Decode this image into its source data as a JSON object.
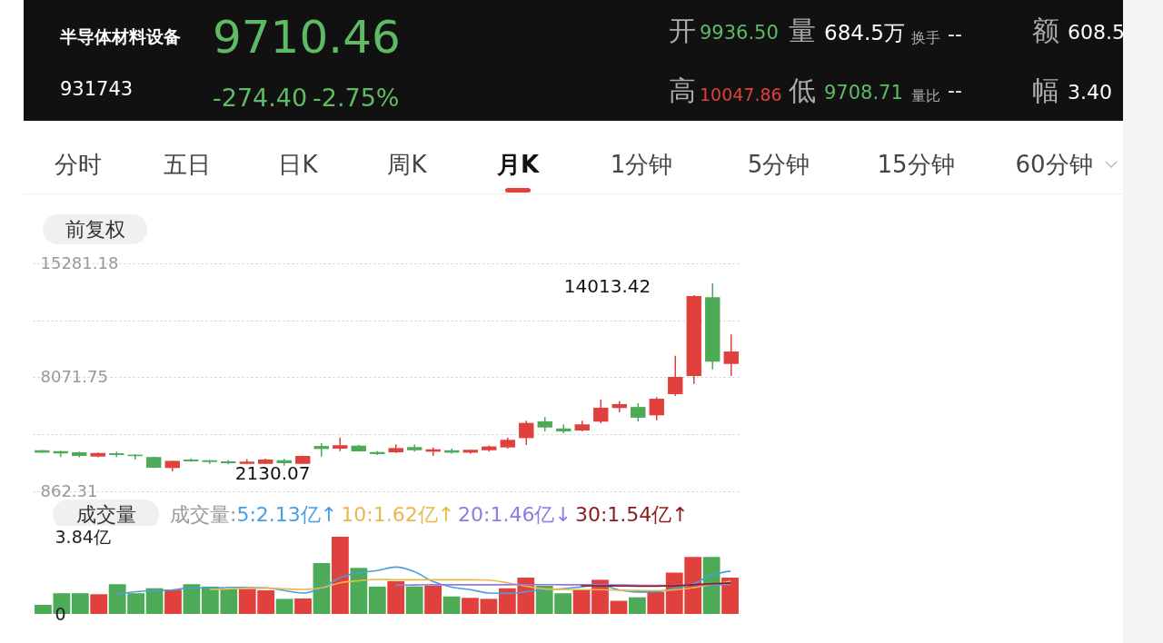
{
  "chart_data": [
    {
      "type": "other",
      "title": "半导体材料设备",
      "annotations": [
        "9710.46",
        "931743",
        "-274.40",
        "-2.75%",
        "开",
        "9936.50",
        "量",
        "684.5万",
        "换手",
        "--",
        "额",
        "608.5",
        "高",
        "10047.86",
        "低",
        "9708.71",
        "量比",
        "--",
        "幅",
        "3.40"
      ]
    },
    {
      "type": "other",
      "annotations": [
        "分时",
        "五日",
        "日K",
        "周K",
        "月K",
        "1分钟",
        "5分钟",
        "15分钟",
        "60分钟"
      ]
    },
    {
      "type": "candlestick",
      "title": "前复权",
      "categories": [
        null,
        null,
        null,
        null,
        null,
        null,
        null,
        null,
        null,
        null,
        null,
        null,
        null,
        null,
        null,
        null,
        null,
        null,
        null,
        null,
        null,
        null,
        null,
        null,
        null,
        null,
        null,
        null,
        null,
        null,
        null,
        null,
        null,
        null,
        null,
        null,
        null,
        null
      ],
      "ohlc": [
        [
          3460,
          3480,
          3300,
          3310
        ],
        [
          3410,
          3420,
          3030,
          3260
        ],
        [
          3330,
          3370,
          3010,
          3100
        ],
        [
          3060,
          3320,
          3020,
          3290
        ],
        [
          3270,
          3370,
          3010,
          3160
        ],
        [
          3180,
          3220,
          2870,
          3090
        ],
        [
          3030,
          3050,
          2340,
          2350
        ],
        [
          2340,
          2800,
          2130.07,
          2790
        ],
        [
          2870,
          2950,
          2740,
          2760
        ],
        [
          2830,
          2830,
          2600,
          2720
        ],
        [
          2760,
          2840,
          2570,
          2640
        ],
        [
          2600,
          2900,
          2600,
          2740
        ],
        [
          2600,
          2930,
          2580,
          2870
        ],
        [
          2830,
          2920,
          2480,
          2640
        ],
        [
          2600,
          3120,
          2600,
          3100
        ],
        [
          3730,
          3910,
          3060,
          3540
        ],
        [
          3560,
          4270,
          3410,
          3780
        ],
        [
          3750,
          3810,
          3370,
          3390
        ],
        [
          3350,
          3400,
          3160,
          3220
        ],
        [
          3330,
          3830,
          3290,
          3600
        ],
        [
          3660,
          3830,
          3370,
          3460
        ],
        [
          3370,
          3640,
          3100,
          3520
        ],
        [
          3460,
          3560,
          3240,
          3310
        ],
        [
          3310,
          3510,
          3250,
          3490
        ],
        [
          3460,
          3770,
          3370,
          3700
        ],
        [
          3640,
          4270,
          3560,
          4120
        ],
        [
          4230,
          5330,
          3790,
          5190
        ],
        [
          5290,
          5560,
          4650,
          4900
        ],
        [
          4840,
          5100,
          4520,
          4650
        ],
        [
          4710,
          5330,
          4650,
          5100
        ],
        [
          5270,
          6670,
          5170,
          6150
        ],
        [
          6130,
          6570,
          5860,
          6380
        ],
        [
          6200,
          6430,
          5290,
          5520
        ],
        [
          5670,
          6820,
          5360,
          6720
        ],
        [
          7010,
          9440,
          6890,
          8100
        ],
        [
          8160,
          13270,
          7660,
          13210
        ],
        [
          13140,
          14013.42,
          8580,
          9060
        ],
        [
          8920,
          10780,
          8160,
          9710.46
        ]
      ],
      "colors": [
        "#4daa57",
        "#4daa57",
        "#4daa57",
        "#e0413c",
        "#4daa57",
        "#4daa57",
        "#4daa57",
        "#e0413c",
        "#4daa57",
        "#4daa57",
        "#4daa57",
        "#e0413c",
        "#e0413c",
        "#4daa57",
        "#e0413c",
        "#4daa57",
        "#e0413c",
        "#4daa57",
        "#4daa57",
        "#e0413c",
        "#4daa57",
        "#e0413c",
        "#4daa57",
        "#e0413c",
        "#e0413c",
        "#e0413c",
        "#e0413c",
        "#4daa57",
        "#4daa57",
        "#e0413c",
        "#e0413c",
        "#e0413c",
        "#4daa57",
        "#e0413c",
        "#e0413c",
        "#e0413c",
        "#4daa57",
        "#e0413c"
      ],
      "ylim": [
        862.31,
        15281.18
      ],
      "yticks": [
        862.31,
        {
          "value": 4467.03,
          "label": null
        },
        8071.75,
        {
          "value": 11676.46,
          "label": null
        },
        15281.18
      ],
      "grid": "y",
      "tick_labels": "y",
      "annotations": [
        "14013.42",
        "2130.07"
      ]
    },
    {
      "type": "bar",
      "title": "成交量",
      "legend_title": "成交量:",
      "legend": "top",
      "categories": [
        null,
        null,
        null,
        null,
        null,
        null,
        null,
        null,
        null,
        null,
        null,
        null,
        null,
        null,
        null,
        null,
        null,
        null,
        null,
        null,
        null,
        null,
        null,
        null,
        null,
        null,
        null,
        null,
        null,
        null,
        null,
        null,
        null,
        null,
        null,
        null,
        null,
        null
      ],
      "values": [
        0.45,
        1.03,
        1.03,
        0.98,
        1.48,
        1.03,
        1.28,
        1.21,
        1.48,
        1.36,
        1.25,
        1.25,
        1.17,
        0.75,
        0.77,
        2.53,
        3.84,
        2.29,
        1.36,
        1.63,
        1.37,
        1.4,
        0.87,
        0.8,
        0.75,
        1.28,
        1.81,
        1.4,
        1.03,
        1.22,
        1.7,
        0.65,
        0.83,
        1.1,
        2.05,
        2.83,
        2.83,
        1.81
      ],
      "colors": [
        "#4daa57",
        "#4daa57",
        "#4daa57",
        "#e0413c",
        "#4daa57",
        "#4daa57",
        "#4daa57",
        "#e0413c",
        "#4daa57",
        "#4daa57",
        "#4daa57",
        "#e0413c",
        "#e0413c",
        "#4daa57",
        "#e0413c",
        "#4daa57",
        "#e0413c",
        "#4daa57",
        "#4daa57",
        "#e0413c",
        "#4daa57",
        "#e0413c",
        "#4daa57",
        "#e0413c",
        "#e0413c",
        "#e0413c",
        "#e0413c",
        "#4daa57",
        "#4daa57",
        "#e0413c",
        "#e0413c",
        "#e0413c",
        "#4daa57",
        "#e0413c",
        "#e0413c",
        "#e0413c",
        "#4daa57",
        "#e0413c"
      ],
      "series": [
        {
          "type": "line",
          "name": "5:2.13亿↑",
          "color": "#4a9ee0",
          "values": [
            null,
            null,
            null,
            null,
            0.99,
            1.11,
            1.16,
            1.2,
            1.3,
            1.27,
            1.32,
            1.31,
            1.3,
            1.16,
            1.04,
            1.29,
            1.81,
            2.04,
            2.16,
            2.33,
            2.1,
            1.61,
            1.33,
            1.21,
            1.04,
            1.02,
            1.1,
            1.21,
            1.25,
            1.35,
            1.43,
            1.2,
            1.09,
            1.1,
            1.27,
            1.49,
            1.93,
            2.13
          ]
        },
        {
          "type": "line",
          "name": "10:1.62亿↑",
          "color": "#e8b84a",
          "values": [
            null,
            null,
            null,
            null,
            null,
            null,
            null,
            null,
            null,
            1.21,
            1.25,
            1.27,
            1.28,
            1.25,
            1.22,
            1.3,
            1.55,
            1.65,
            1.72,
            1.7,
            1.7,
            1.7,
            1.7,
            1.7,
            1.68,
            1.55,
            1.38,
            1.25,
            1.22,
            1.21,
            1.21,
            1.18,
            1.17,
            1.16,
            1.2,
            1.3,
            1.45,
            1.62
          ]
        },
        {
          "type": "line",
          "name": "20:1.46亿↓",
          "color": "#8c7ae6",
          "values": [
            null,
            null,
            null,
            null,
            null,
            null,
            null,
            null,
            null,
            null,
            null,
            null,
            null,
            null,
            null,
            null,
            null,
            null,
            null,
            1.43,
            1.44,
            1.45,
            1.45,
            1.45,
            1.45,
            1.45,
            1.46,
            1.46,
            1.45,
            1.45,
            1.45,
            1.44,
            1.43,
            1.42,
            1.42,
            1.43,
            1.45,
            1.46
          ]
        },
        {
          "type": "line",
          "name": "30:1.54亿↑",
          "color": "#8b1a1a",
          "values": [
            null,
            null,
            null,
            null,
            null,
            null,
            null,
            null,
            null,
            null,
            null,
            null,
            null,
            null,
            null,
            null,
            null,
            null,
            null,
            null,
            null,
            null,
            null,
            null,
            null,
            null,
            null,
            null,
            null,
            1.4,
            1.4,
            1.39,
            1.38,
            1.38,
            1.4,
            1.45,
            1.5,
            1.54
          ]
        }
      ],
      "ylim": [
        0,
        3.84
      ],
      "yticks": [
        0,
        {
          "value": 3.84,
          "label": "3.84亿"
        }
      ],
      "tick_labels": "y"
    }
  ]
}
